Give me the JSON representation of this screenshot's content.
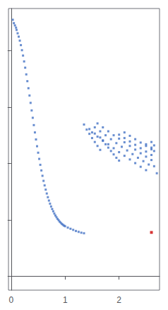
{
  "chart_data": {
    "type": "scatter",
    "marker": "square",
    "grid": false,
    "tick_labels": "x",
    "xlim": [
      -0.05,
      2.75
    ],
    "ylim": [
      -0.5,
      9.5
    ],
    "xticks": [
      0,
      1,
      2
    ],
    "yticks": [
      0,
      2,
      4,
      6,
      8
    ],
    "series": [
      {
        "color": "#4472c4",
        "x": [
          0.03,
          0.05,
          0.07,
          0.09,
          0.1,
          0.12,
          0.14,
          0.16,
          0.18,
          0.2,
          0.22,
          0.24,
          0.26,
          0.28,
          0.3,
          0.32,
          0.34,
          0.36,
          0.38,
          0.4,
          0.42,
          0.44,
          0.46,
          0.48,
          0.5,
          0.52,
          0.54,
          0.56,
          0.58,
          0.6,
          0.62,
          0.64,
          0.66,
          0.68,
          0.7,
          0.72,
          0.74,
          0.76,
          0.78,
          0.8,
          0.82,
          0.84,
          0.86,
          0.88,
          0.9,
          0.92,
          0.94,
          0.96,
          0.98,
          1.0,
          1.05,
          1.1,
          1.15,
          1.2,
          1.25,
          1.3,
          1.35,
          1.4,
          1.45,
          1.5,
          1.55,
          1.6,
          1.65,
          1.35,
          1.45,
          1.55,
          1.65,
          1.7,
          1.75,
          1.8,
          1.85,
          1.9,
          1.95,
          2.0,
          1.5,
          1.6,
          1.7,
          1.8,
          1.9,
          2.0,
          2.1,
          2.2,
          2.3,
          2.4,
          2.5,
          1.55,
          1.65,
          1.75,
          1.85,
          1.95,
          2.05,
          2.15,
          2.25,
          2.35,
          2.45,
          2.55,
          1.6,
          1.7,
          1.8,
          1.9,
          2.0,
          2.1,
          2.2,
          2.3,
          2.4,
          2.5,
          2.6,
          2.0,
          2.1,
          2.2,
          2.3,
          2.4,
          2.5,
          2.6,
          2.1,
          2.2,
          2.3,
          2.4,
          2.5,
          2.6,
          2.5,
          2.6,
          2.65,
          2.6,
          2.65,
          2.65,
          2.7
        ],
        "values": [
          9.1,
          8.98,
          8.9,
          8.82,
          8.74,
          8.62,
          8.5,
          8.36,
          8.2,
          8.02,
          7.83,
          7.62,
          7.4,
          7.16,
          6.92,
          6.67,
          6.41,
          6.15,
          5.88,
          5.62,
          5.36,
          5.1,
          4.85,
          4.61,
          4.38,
          4.16,
          3.95,
          3.75,
          3.56,
          3.38,
          3.22,
          3.07,
          2.93,
          2.8,
          2.68,
          2.57,
          2.47,
          2.38,
          2.3,
          2.22,
          2.15,
          2.09,
          2.03,
          1.98,
          1.93,
          1.89,
          1.85,
          1.82,
          1.79,
          1.77,
          1.72,
          1.68,
          1.64,
          1.6,
          1.57,
          1.54,
          1.52,
          5.2,
          5.05,
          4.9,
          4.76,
          4.62,
          4.48,
          5.38,
          5.22,
          5.06,
          4.92,
          4.8,
          4.68,
          4.56,
          4.44,
          4.32,
          4.2,
          4.1,
          5.1,
          4.95,
          4.82,
          4.68,
          4.54,
          4.4,
          4.27,
          4.14,
          4.01,
          3.88,
          3.76,
          5.28,
          5.14,
          5.0,
          4.86,
          4.72,
          4.59,
          4.46,
          4.33,
          4.2,
          4.08,
          3.96,
          5.42,
          5.28,
          5.14,
          5.0,
          4.88,
          4.75,
          4.62,
          4.49,
          4.36,
          4.24,
          4.12,
          5.02,
          4.9,
          4.78,
          4.66,
          4.54,
          4.42,
          4.3,
          5.1,
          4.98,
          4.86,
          4.74,
          4.62,
          4.5,
          4.68,
          4.56,
          4.44,
          4.76,
          4.64,
          3.9,
          3.65
        ]
      },
      {
        "color": "#cc0000",
        "x": [
          2.6
        ],
        "values": [
          1.55
        ]
      }
    ]
  }
}
